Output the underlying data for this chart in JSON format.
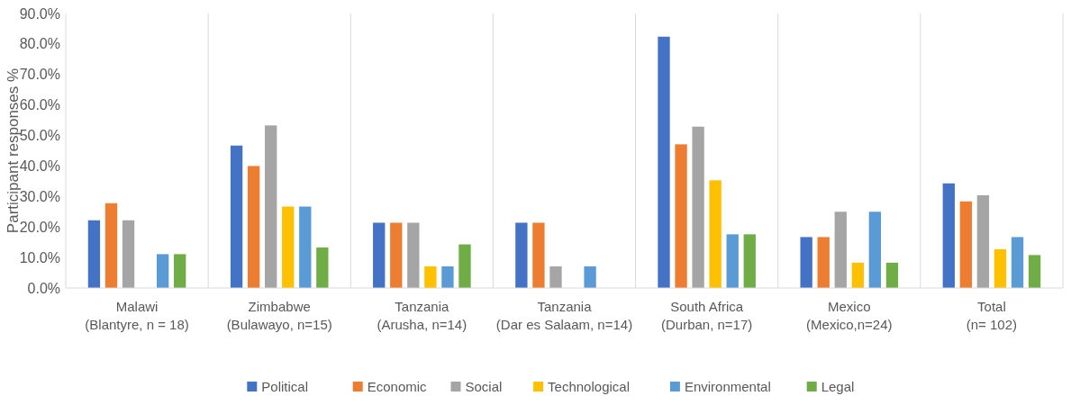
{
  "chart_data": {
    "type": "bar",
    "ylabel": "Participant responses %",
    "categories": [
      "Malawi\n(Blantyre, n = 18)",
      "Zimbabwe\n(Bulawayo, n=15)",
      "Tanzania\n(Arusha, n=14)",
      "Tanzania\n(Dar es Salaam, n=14)",
      "South Africa\n(Durban, n=17)",
      "Mexico\n(Mexico,n=24)",
      "Total\n(n= 102)"
    ],
    "series": [
      {
        "name": "Political",
        "color": "#4472c4",
        "values": [
          22.2,
          46.7,
          21.4,
          21.4,
          82.4,
          16.7,
          34.3
        ]
      },
      {
        "name": "Economic",
        "color": "#ed7d31",
        "values": [
          27.8,
          40.0,
          21.4,
          21.4,
          47.1,
          16.7,
          28.4
        ]
      },
      {
        "name": "Social",
        "color": "#a5a5a5",
        "values": [
          22.2,
          53.3,
          21.4,
          7.1,
          52.9,
          25.0,
          30.4
        ]
      },
      {
        "name": "Technological",
        "color": "#ffc000",
        "values": [
          0,
          26.7,
          7.1,
          0,
          35.3,
          8.3,
          12.7
        ]
      },
      {
        "name": "Environmental",
        "color": "#5b9bd5",
        "values": [
          11.1,
          26.7,
          7.1,
          7.1,
          17.6,
          25.0,
          16.7
        ]
      },
      {
        "name": "Legal",
        "color": "#70ad47",
        "values": [
          11.1,
          13.3,
          14.3,
          0,
          17.6,
          8.3,
          10.8
        ]
      }
    ],
    "ylim": [
      0,
      90
    ],
    "yticks": [
      {
        "value": 0,
        "label": "0.0%"
      },
      {
        "value": 10,
        "label": "10.0%"
      },
      {
        "value": 20,
        "label": "20.0%"
      },
      {
        "value": 30,
        "label": "30.0%"
      },
      {
        "value": 40,
        "label": "40.0%"
      },
      {
        "value": 50,
        "label": "50.0%"
      },
      {
        "value": 60,
        "label": "60.0%"
      },
      {
        "value": 70,
        "label": "70.0%"
      },
      {
        "value": 80,
        "label": "80.0%"
      },
      {
        "value": 90,
        "label": "90.0%"
      }
    ],
    "grid": "x",
    "legend": "bottom"
  }
}
